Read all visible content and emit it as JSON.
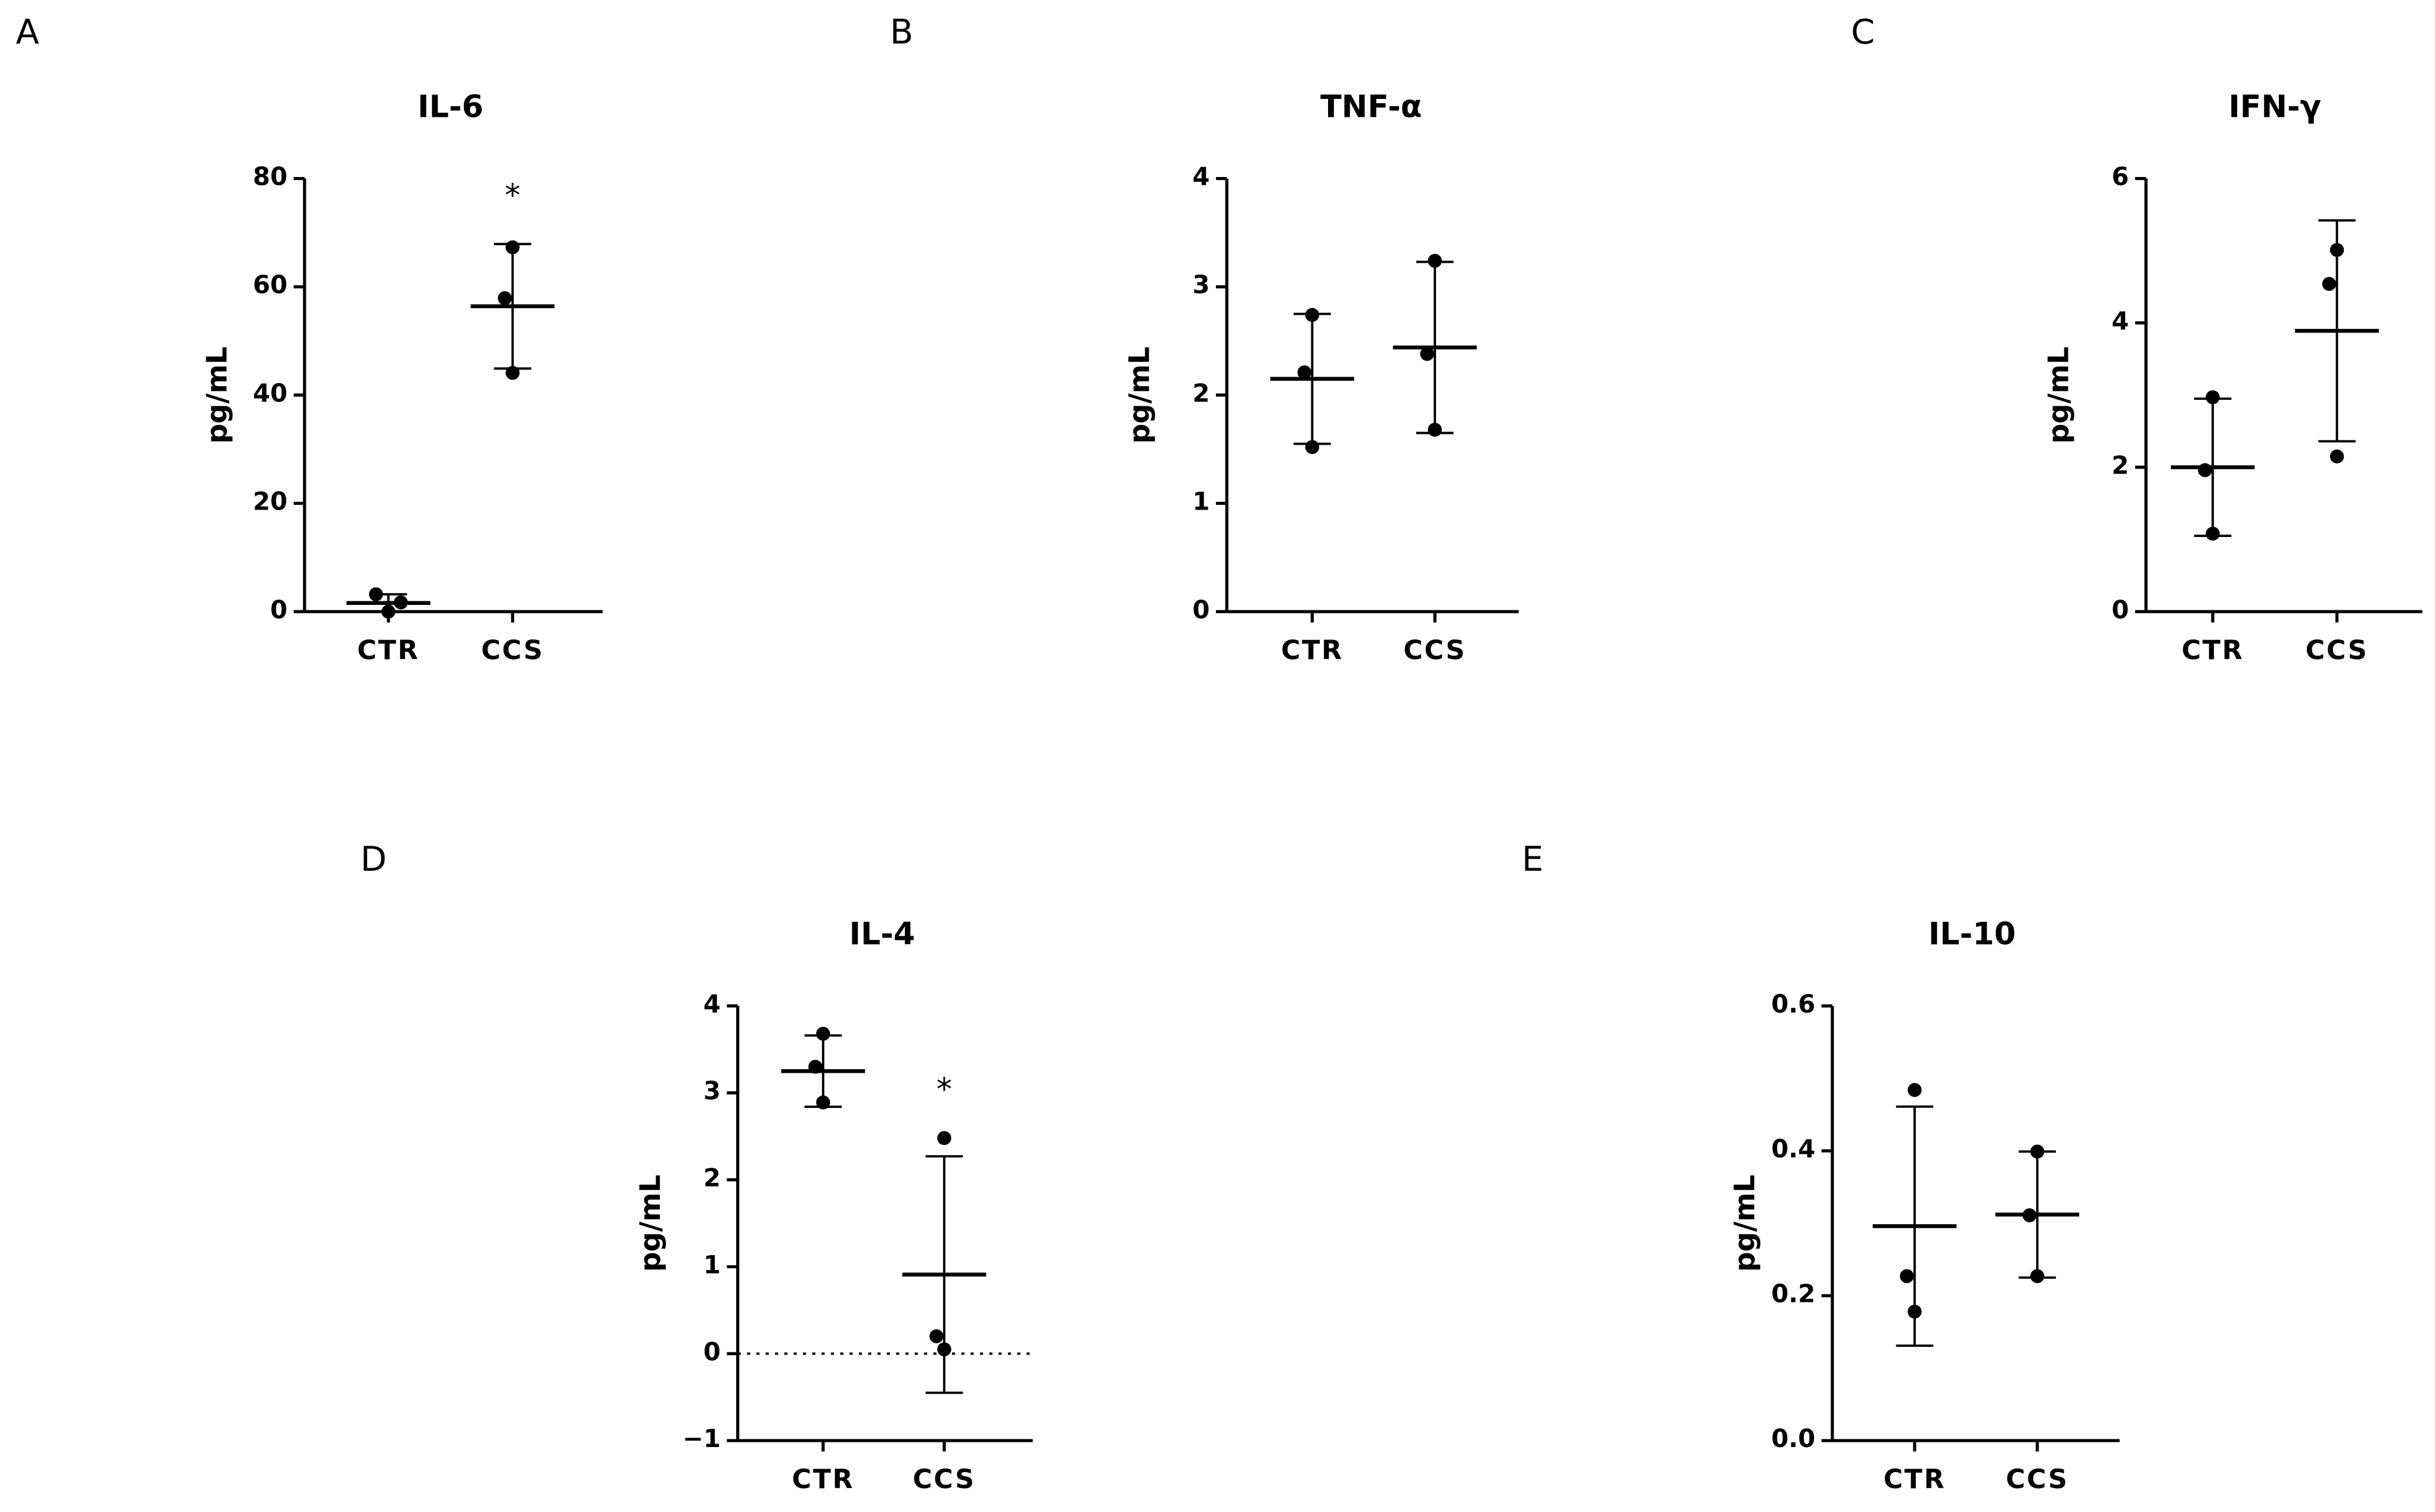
{
  "chart_data": [
    {
      "type": "dotplot",
      "panel_label": "A",
      "title": "IL-6",
      "ylabel": "pg/mL",
      "categories": [
        "CTR",
        "CCS"
      ],
      "groups": [
        {
          "points": [
            3.2,
            0,
            1.7
          ],
          "mean": 1.6,
          "sd": 1.6
        },
        {
          "points": [
            67.3,
            57.9,
            44.1
          ],
          "mean": 56.4,
          "sd": 11.5
        }
      ],
      "significance": [
        null,
        "*"
      ],
      "ylim": [
        0,
        80
      ],
      "yticks": [
        0,
        20,
        40,
        60,
        80
      ],
      "color": "#000000"
    },
    {
      "type": "dotplot",
      "panel_label": "B",
      "title": "TNF-α",
      "ylabel": "pg/mL",
      "categories": [
        "CTR",
        "CCS"
      ],
      "groups": [
        {
          "points": [
            2.74,
            2.21,
            1.52
          ],
          "mean": 2.15,
          "sd": 0.6
        },
        {
          "points": [
            3.24,
            2.38,
            1.68
          ],
          "mean": 2.44,
          "sd": 0.79
        }
      ],
      "ylim": [
        0,
        4
      ],
      "yticks": [
        0,
        1,
        2,
        3,
        4
      ],
      "color": "#000000"
    },
    {
      "type": "dotplot",
      "panel_label": "C",
      "title": "IFN-γ",
      "ylabel": "pg/mL",
      "categories": [
        "CTR",
        "CCS"
      ],
      "groups": [
        {
          "points": [
            2.97,
            1.96,
            1.08
          ],
          "mean": 2.0,
          "sd": 0.95
        },
        {
          "points": [
            5.01,
            4.54,
            2.15
          ],
          "mean": 3.89,
          "sd": 1.53
        }
      ],
      "ylim": [
        0,
        6
      ],
      "yticks": [
        0,
        2,
        4,
        6
      ],
      "color": "#000000"
    },
    {
      "type": "dotplot",
      "panel_label": "D",
      "title": "IL-4",
      "ylabel": "pg/mL",
      "categories": [
        "CTR",
        "CCS"
      ],
      "groups": [
        {
          "points": [
            3.68,
            3.3,
            2.89
          ],
          "mean": 3.25,
          "sd": 0.41
        },
        {
          "points": [
            2.48,
            0.2,
            0.05
          ],
          "mean": 0.91,
          "sd": 1.36
        }
      ],
      "significance": [
        null,
        "*"
      ],
      "zero_line": true,
      "ylim": [
        -1,
        4
      ],
      "yticks": [
        {
          "value": -1,
          "label": "−1"
        },
        0,
        1,
        2,
        3,
        4
      ],
      "color": "#000000"
    },
    {
      "type": "dotplot",
      "panel_label": "E",
      "title": "IL-10",
      "ylabel": "pg/mL",
      "categories": [
        "CTR",
        "CCS"
      ],
      "groups": [
        {
          "points": [
            0.484,
            0.227,
            0.178
          ],
          "mean": 0.296,
          "sd": 0.165
        },
        {
          "points": [
            0.399,
            0.311,
            0.227
          ],
          "mean": 0.312,
          "sd": 0.087
        }
      ],
      "ylim": [
        0,
        0.6
      ],
      "yticks": [
        {
          "value": 0,
          "label": "0.0"
        },
        0.2,
        0.4,
        0.6
      ],
      "color": "#000000"
    }
  ]
}
